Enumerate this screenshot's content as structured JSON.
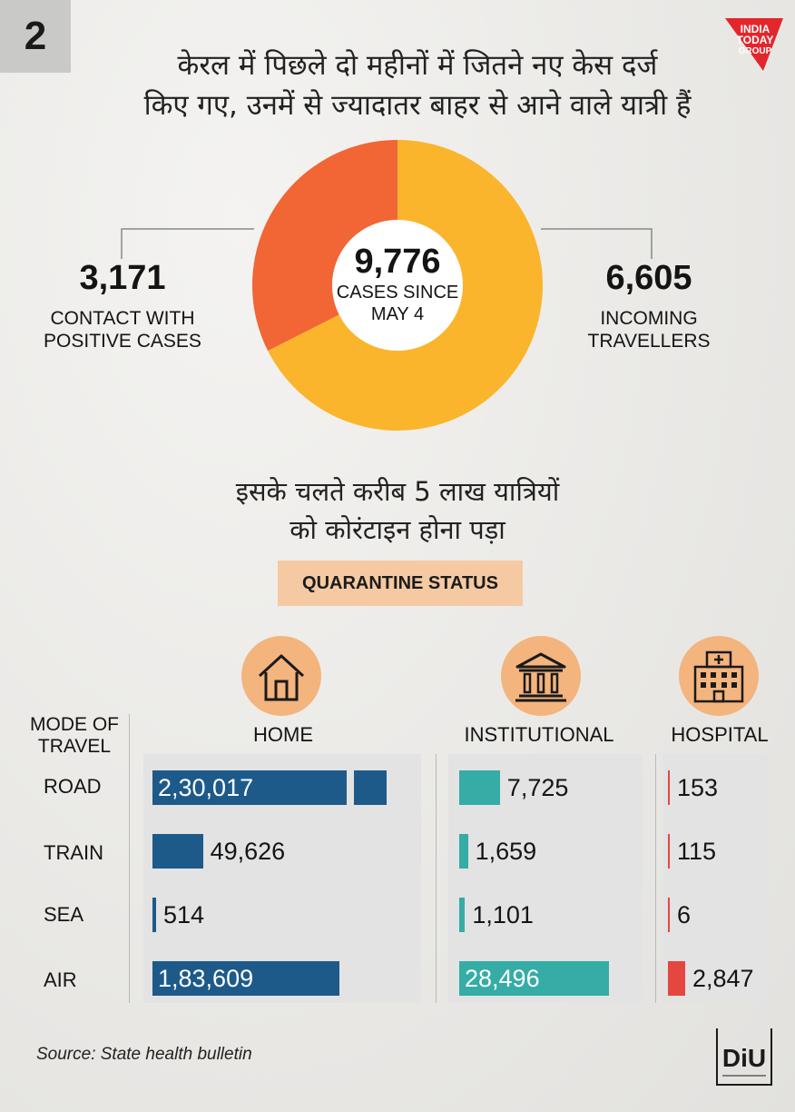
{
  "page_number": "2",
  "headline": {
    "line1": "केरल में पिछले दो महीनों में जितने नए केस दर्ज",
    "line2": "किए गए, उनमें से ज्यादातर बाहर से आने वाले यात्री हैं"
  },
  "brand": {
    "line1": "INDIA",
    "line2": "TODAY",
    "line3": "GROUP"
  },
  "donut": {
    "total_value": "9,776",
    "total_label_line1": "CASES SINCE",
    "total_label_line2": "MAY 4",
    "left_value": "3,171",
    "left_label_line1": "CONTACT WITH",
    "left_label_line2": "POSITIVE CASES",
    "right_value": "6,605",
    "right_label_line1": "INCOMING",
    "right_label_line2": "TRAVELLERS"
  },
  "subhead": {
    "line1": "इसके चलते करीब 5 लाख यात्रियों",
    "line2": "को कोरंटाइन होना पड़ा"
  },
  "quarantine_title": "QUARANTINE STATUS",
  "table": {
    "mode_header_line1": "MODE OF",
    "mode_header_line2": "TRAVEL",
    "columns": [
      "HOME",
      "INSTITUTIONAL",
      "HOSPITAL"
    ],
    "rows": [
      "ROAD",
      "TRAIN",
      "SEA",
      "AIR"
    ]
  },
  "source": "Source: State health bulletin",
  "diu_logo_text": "DiU",
  "colors": {
    "orange": "#f26535",
    "yellow": "#fbb52c",
    "home": "#1d5a8a",
    "institutional": "#35aca6",
    "hospital": "#e4473f",
    "icon_bg": "#f4b47d",
    "badge": "#f5c9a1"
  },
  "icons": [
    "house-icon",
    "institution-icon",
    "hospital-icon",
    "india-today-logo",
    "diu-logo"
  ],
  "chart_data": [
    {
      "type": "pie",
      "title": "9,776 CASES SINCE MAY 4",
      "categories": [
        "CONTACT WITH POSITIVE CASES",
        "INCOMING TRAVELLERS"
      ],
      "values": [
        3171,
        6605
      ],
      "labels": [
        "3,171",
        "6,605"
      ],
      "total": 9776
    },
    {
      "type": "bar",
      "title": "QUARANTINE STATUS",
      "xlabel": "MODE OF TRAVEL",
      "categories": [
        "ROAD",
        "TRAIN",
        "SEA",
        "AIR"
      ],
      "series": [
        {
          "name": "HOME",
          "values": [
            230017,
            49626,
            514,
            183609
          ],
          "labels": [
            "2,30,017",
            "49,626",
            "514",
            "1,83,609"
          ],
          "axis_max": 250000
        },
        {
          "name": "INSTITUTIONAL",
          "values": [
            7725,
            1659,
            1101,
            28496
          ],
          "labels": [
            "7,725",
            "1,659",
            "1,101",
            "28,496"
          ],
          "axis_max": 30000
        },
        {
          "name": "HOSPITAL",
          "values": [
            153,
            115,
            6,
            2847
          ],
          "labels": [
            "153",
            "115",
            "6",
            "2,847"
          ],
          "axis_max": 3000
        }
      ]
    }
  ]
}
